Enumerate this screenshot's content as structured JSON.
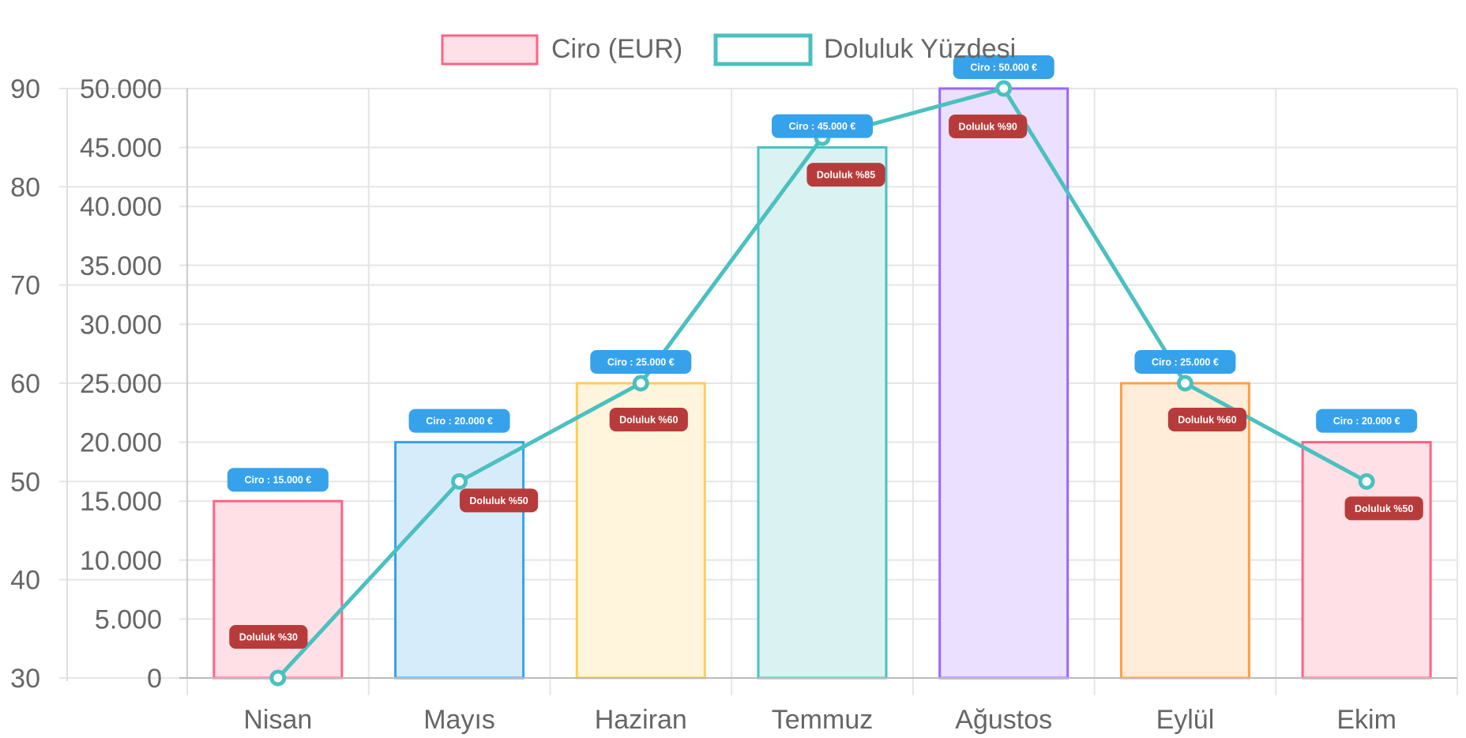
{
  "chart_data": {
    "type": "bar",
    "categories": [
      "Nisan",
      "Mayıs",
      "Haziran",
      "Temmuz",
      "Ağustos",
      "Eylül",
      "Ekim"
    ],
    "series": [
      {
        "name": "Ciro (EUR)",
        "type": "bar",
        "axis": "right-inner",
        "values": [
          15000,
          20000,
          25000,
          45000,
          50000,
          25000,
          20000
        ],
        "labels": [
          "Ciro : 15.000 €",
          "Ciro : 20.000 €",
          "Ciro : 25.000 €",
          "Ciro : 45.000 €",
          "Ciro : 50.000 €",
          "Ciro : 25.000 €",
          "Ciro : 20.000 €"
        ],
        "fill_colors": [
          "#ffe0e6",
          "#d7ecfb",
          "#fff5dd",
          "#dbf2f2",
          "#ebe0ff",
          "#ffecd9",
          "#ffe0e6"
        ],
        "border_colors": [
          "#ff6384",
          "#36a2eb",
          "#ffcd56",
          "#4bc0c0",
          "#9966ff",
          "#ff9f40",
          "#ff6384"
        ]
      },
      {
        "name": "Doluluk Yüzdesi",
        "type": "line",
        "axis": "left-outer",
        "values": [
          30,
          50,
          60,
          85,
          90,
          60,
          50
        ],
        "labels": [
          "Doluluk %30",
          "Doluluk %50",
          "Doluluk %60",
          "Doluluk %85",
          "Doluluk %90",
          "Doluluk %60",
          "Doluluk %50"
        ],
        "color": "#4bc0c0"
      }
    ],
    "y_left": {
      "ylim": [
        30,
        90
      ],
      "ticks": [
        "30",
        "40",
        "50",
        "60",
        "70",
        "80",
        "90"
      ]
    },
    "y_right": {
      "ylim": [
        0,
        50000
      ],
      "ticks": [
        "0",
        "5.000",
        "10.000",
        "15.000",
        "20.000",
        "25.000",
        "30.000",
        "35.000",
        "40.000",
        "45.000",
        "50.000"
      ]
    },
    "legend_position": "top",
    "grid": true,
    "colors": {
      "ciro_badge": "#36a2eb",
      "doluluk_badge": "#b83b3b",
      "axis_text": "#666666",
      "grid": "#e5e5e5"
    }
  }
}
